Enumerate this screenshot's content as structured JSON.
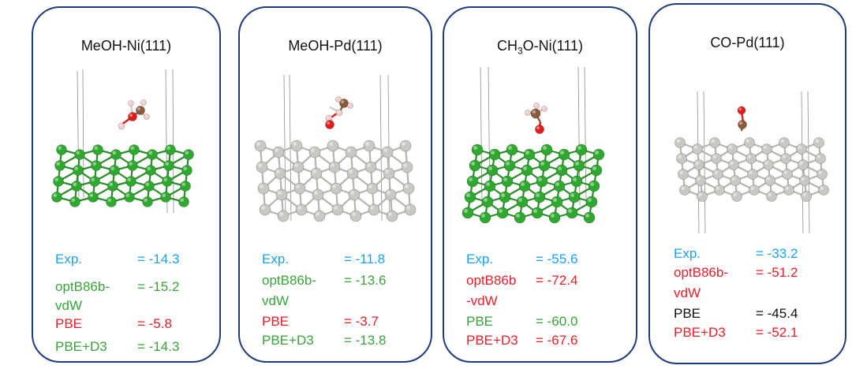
{
  "panels": [
    {
      "title": "MeOH-Ni(111)",
      "metal": "Ni",
      "adsorbate": "MeOH",
      "rows": [
        {
          "label": "Exp.",
          "label2": "",
          "value": "= -14.3",
          "color": "#19a3ec"
        },
        {
          "label": "optB86b-",
          "label2": "vdW",
          "value": "= -15.2",
          "color": "#3aa33a"
        },
        {
          "label": "PBE",
          "label2": "",
          "value": "= -5.8",
          "color": "#e8202a"
        },
        {
          "label": "PBE+D3",
          "label2": "",
          "value": "= -14.3",
          "color": "#3aa33a"
        }
      ]
    },
    {
      "title": "MeOH-Pd(111)",
      "metal": "Pd",
      "adsorbate": "MeOH",
      "rows": [
        {
          "label": "Exp.",
          "label2": "",
          "value": "= -11.8",
          "color": "#19a3ec"
        },
        {
          "label": "optB86b-",
          "label2": "vdW",
          "value": "= -13.6",
          "color": "#3aa33a"
        },
        {
          "label": "PBE",
          "label2": "",
          "value": "= -3.7",
          "color": "#e8202a"
        },
        {
          "label": "PBE+D3",
          "label2": "",
          "value": "= -13.8",
          "color": "#3aa33a"
        }
      ]
    },
    {
      "title_main": "CH",
      "title_sub": "3",
      "title_rest": "O-Ni(111)",
      "metal": "Ni",
      "adsorbate": "CH3O",
      "rows": [
        {
          "label": "Exp.",
          "label2": "",
          "value": "= -55.6",
          "color": "#19a3ec"
        },
        {
          "label": "optB86b",
          "label2": "-vdW",
          "value": "= -72.4",
          "color": "#e8202a"
        },
        {
          "label": "PBE",
          "label2": "",
          "value": "= -60.0",
          "color": "#3aa33a"
        },
        {
          "label": "PBE+D3",
          "label2": "",
          "value": "= -67.6",
          "color": "#e8202a"
        }
      ]
    },
    {
      "title": "CO-Pd(111)",
      "metal": "Pd",
      "adsorbate": "CO",
      "rows": [
        {
          "label": "Exp.",
          "label2": "",
          "value": "= -33.2",
          "color": "#19a3ec"
        },
        {
          "label": "optB86b-",
          "label2": "vdW",
          "value": "= -51.2",
          "color": "#e8202a"
        },
        {
          "label": "PBE",
          "label2": "",
          "value": "= -45.4",
          "color": "#111111"
        },
        {
          "label": "PBE+D3",
          "label2": "",
          "value": "= -52.1",
          "color": "#e8202a"
        }
      ]
    }
  ],
  "colors": {
    "border": "#1f3b7a",
    "ni_atom": "#2fa82f",
    "pd_atom": "#c8c8c4",
    "oxygen": "#e21b1b",
    "carbon": "#8a5a3a",
    "hydrogen": "#f4cfcf"
  }
}
